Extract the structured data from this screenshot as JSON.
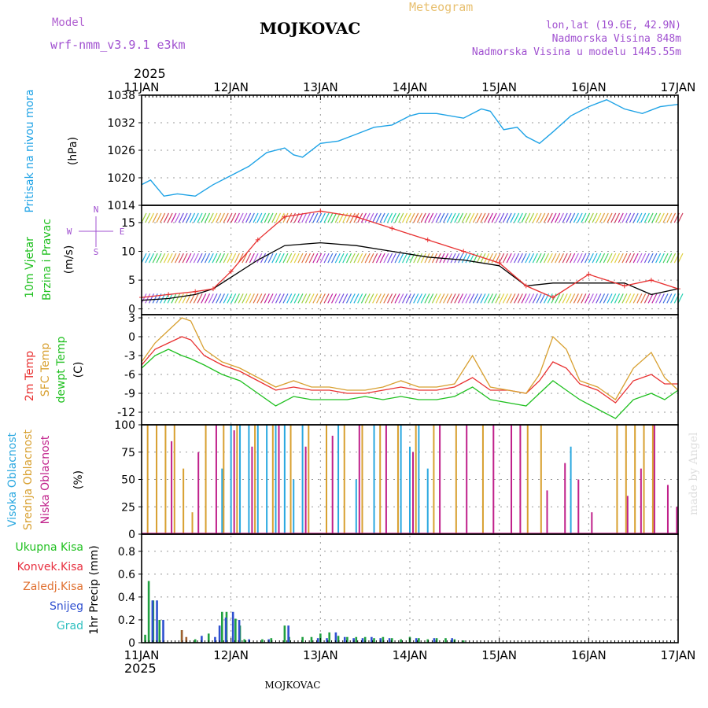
{
  "header": {
    "model_label": "Model",
    "model_name": "wrf-nmm_v3.9.1 e3km",
    "title": "MOJKOVAC",
    "product": "Meteogram",
    "lonlat": "lon,lat (19.6E, 42.9N)",
    "altitude": "Nadmorska Visina 848m",
    "model_altitude": "Nadmorska Visina u modelu 1445.55m",
    "year": "2025",
    "footer_station": "MOJKOVAC",
    "credit": "made by Angel"
  },
  "colors": {
    "pressure": "#1fa3e6",
    "model_purple": "#a050d0",
    "meteogram": "#e8c070",
    "temp2m": "#e83030",
    "sfc": "#d8a030",
    "dewpt": "#20c020",
    "high_cloud": "#2aa8e0",
    "mid_cloud": "#d8a030",
    "low_cloud": "#c0208a",
    "total_precip": "#20a040",
    "snow": "#3050d0",
    "convective": "#e83040",
    "freezing": "#e07030",
    "graupel": "#30c0c0"
  },
  "chart_data": [
    {
      "type": "line",
      "panel": "pressure",
      "ylabel": "Pritisak na nivou mora",
      "unit": "(hPa)",
      "ylim": [
        1014,
        1038
      ],
      "yticks": [
        1014,
        1020,
        1026,
        1032,
        1038
      ],
      "x_days": [
        0,
        0.1,
        0.25,
        0.4,
        0.6,
        0.8,
        1.0,
        1.2,
        1.4,
        1.6,
        1.7,
        1.8,
        2.0,
        2.2,
        2.4,
        2.6,
        2.8,
        3.0,
        3.1,
        3.3,
        3.6,
        3.8,
        3.9,
        4.05,
        4.2,
        4.3,
        4.45,
        4.6,
        4.8,
        5.0,
        5.2,
        5.4,
        5.6,
        5.8,
        6.0
      ],
      "values": [
        1018.5,
        1019.5,
        1016,
        1016.5,
        1016,
        1018.5,
        1020.5,
        1022.5,
        1025.5,
        1026.5,
        1025,
        1024.5,
        1027.5,
        1028,
        1029.5,
        1031,
        1031.5,
        1033.5,
        1034,
        1034,
        1033,
        1035,
        1034.5,
        1030.5,
        1031,
        1029,
        1027.5,
        1030,
        1033.5,
        1035.5,
        1037,
        1035,
        1034,
        1035.5,
        1036
      ]
    },
    {
      "type": "line",
      "panel": "wind",
      "ylabel": "10m Vjetar Brzina i Pravac",
      "unit": "(m/s)",
      "ylim": [
        -1,
        18
      ],
      "yticks": [
        0,
        5,
        10,
        15
      ],
      "compass_labels": [
        "N",
        "S",
        "W",
        "E"
      ],
      "barb_rows": [
        1,
        8,
        15
      ],
      "series": [
        {
          "name": "speed",
          "color": "#000000",
          "x_days": [
            0,
            0.3,
            0.6,
            0.8,
            1.0,
            1.3,
            1.6,
            2.0,
            2.4,
            2.8,
            3.2,
            3.6,
            4.0,
            4.3,
            4.6,
            5.0,
            5.4,
            5.7,
            6.0
          ],
          "values": [
            1.5,
            1.8,
            2.5,
            3.5,
            5.5,
            8.5,
            11,
            11.5,
            11,
            10,
            9,
            8.5,
            7.5,
            4,
            4.5,
            4.5,
            4.5,
            2.5,
            3.5
          ]
        },
        {
          "name": "gust",
          "color": "#e83030",
          "x_days": [
            0,
            0.3,
            0.6,
            0.8,
            1.0,
            1.3,
            1.6,
            2.0,
            2.4,
            2.8,
            3.2,
            3.6,
            4.0,
            4.3,
            4.6,
            5.0,
            5.4,
            5.7,
            6.0
          ],
          "values": [
            2,
            2.5,
            3,
            3.5,
            6.5,
            12,
            16,
            17,
            16,
            14,
            12,
            10,
            8,
            4,
            2,
            6,
            4,
            5,
            3.5
          ]
        }
      ]
    },
    {
      "type": "line",
      "panel": "temperature",
      "ylabel": "2m Temp / SFC Temp / dewpt Temp",
      "unit": "(C)",
      "ylim": [
        -14,
        3.5
      ],
      "yticks": [
        -12,
        -9,
        -6,
        -3,
        0,
        3
      ],
      "x_days": [
        0,
        0.15,
        0.3,
        0.45,
        0.55,
        0.7,
        0.9,
        1.1,
        1.3,
        1.5,
        1.7,
        1.9,
        2.1,
        2.3,
        2.5,
        2.7,
        2.9,
        3.1,
        3.3,
        3.5,
        3.7,
        3.9,
        4.1,
        4.3,
        4.45,
        4.6,
        4.75,
        4.9,
        5.1,
        5.3,
        5.5,
        5.7,
        5.85,
        6.0
      ],
      "series": [
        {
          "name": "2m Temp",
          "values": [
            -4.5,
            -2,
            -1,
            0,
            -0.5,
            -3,
            -4.5,
            -5.5,
            -7,
            -8.5,
            -8,
            -8.5,
            -8.5,
            -9,
            -9,
            -8.5,
            -8,
            -8.5,
            -8.5,
            -8,
            -6.5,
            -8.5,
            -8.5,
            -9,
            -7,
            -4,
            -5,
            -7.5,
            -8.5,
            -10.5,
            -7,
            -6,
            -7.5,
            -7.5
          ]
        },
        {
          "name": "SFC Temp",
          "values": [
            -4,
            -1,
            1,
            3,
            2.5,
            -2,
            -4,
            -5,
            -6.5,
            -8,
            -7,
            -8,
            -8,
            -8.5,
            -8.5,
            -8,
            -7,
            -8,
            -8,
            -7.5,
            -3,
            -8,
            -8.5,
            -9,
            -6,
            0,
            -2,
            -7,
            -8,
            -10,
            -5,
            -2.5,
            -6.5,
            -8.5
          ]
        },
        {
          "name": "dewpt Temp",
          "values": [
            -5,
            -3,
            -2,
            -3,
            -3.5,
            -4.5,
            -6,
            -7,
            -9,
            -11,
            -9.5,
            -10,
            -10,
            -10,
            -9.5,
            -10,
            -9.5,
            -10,
            -10,
            -9.5,
            -8,
            -10,
            -10.5,
            -11,
            -9,
            -7,
            -8.5,
            -10,
            -11.5,
            -13,
            -10,
            -9,
            -10,
            -8.5
          ]
        }
      ]
    },
    {
      "type": "bar",
      "panel": "cloud_cover",
      "ylabel": "Visoka Oblacnost / Srednja Oblacnost / Niska Oblacnost",
      "unit": "(%)",
      "ylim": [
        0,
        100
      ],
      "yticks": [
        0,
        25,
        50,
        75,
        100
      ],
      "series": [
        {
          "name": "Visoka Oblacnost",
          "x_days": [
            0.9,
            1.0,
            1.1,
            1.2,
            1.3,
            1.4,
            1.5,
            1.6,
            1.7,
            1.8,
            2.2,
            2.4,
            2.6,
            2.9,
            3.0,
            3.1,
            3.2,
            4.4,
            4.6,
            4.8,
            5.0
          ],
          "values": [
            60,
            100,
            100,
            100,
            100,
            100,
            100,
            100,
            50,
            100,
            100,
            50,
            100,
            100,
            80,
            100,
            60,
            0,
            0,
            80,
            0
          ]
        },
        {
          "name": "Srednja Oblacnost",
          "x_days": [
            0.05,
            0.15,
            0.25,
            0.35,
            0.45,
            0.55,
            0.7,
            0.9,
            1.05,
            1.25,
            1.45,
            1.65,
            1.85,
            2.05,
            2.25,
            2.45,
            2.65,
            2.85,
            3.05,
            3.25,
            3.5,
            3.8,
            4.3,
            4.45,
            5.3,
            5.4,
            5.5,
            5.6,
            5.7
          ],
          "values": [
            100,
            100,
            100,
            100,
            60,
            20,
            100,
            100,
            100,
            100,
            100,
            100,
            100,
            100,
            100,
            100,
            100,
            100,
            100,
            100,
            100,
            100,
            100,
            100,
            100,
            100,
            100,
            100,
            100
          ]
        },
        {
          "name": "Niska Oblacnost",
          "x_days": [
            0.3,
            0.6,
            0.8,
            1.0,
            1.2,
            1.5,
            1.8,
            2.1,
            2.4,
            2.7,
            3.0,
            3.3,
            3.6,
            3.9,
            4.1,
            4.2,
            4.5,
            4.7,
            4.85,
            5.0,
            5.4,
            5.55,
            5.7,
            5.85,
            5.95
          ],
          "values": [
            85,
            75,
            100,
            95,
            80,
            100,
            80,
            90,
            100,
            100,
            75,
            100,
            100,
            100,
            100,
            100,
            40,
            65,
            50,
            20,
            35,
            60,
            100,
            45,
            25
          ]
        }
      ]
    },
    {
      "type": "bar",
      "panel": "precipitation",
      "ylabel": "1hr Precip (mm)",
      "ylim": [
        0,
        0.95
      ],
      "yticks": [
        0,
        0.2,
        0.4,
        0.6,
        0.8
      ],
      "legend": [
        "Ukupna Kisa",
        "Konvek.Kisa",
        "Zaledj.Kisa",
        "Snijeg",
        "Grad"
      ],
      "series": [
        {
          "name": "Ukupna Kisa",
          "x_days": [
            0.04,
            0.08,
            0.13,
            0.2,
            0.45,
            0.6,
            0.75,
            0.9,
            0.95,
            1.05,
            1.1,
            1.15,
            1.35,
            1.45,
            1.6,
            1.65,
            1.8,
            1.9,
            2.0,
            2.1,
            2.2,
            2.3,
            2.4,
            2.5,
            2.6,
            2.7,
            2.8,
            2.9,
            3.0,
            3.1,
            3.2,
            3.3,
            3.4,
            3.5,
            3.6
          ],
          "values": [
            0.07,
            0.54,
            0.37,
            0.2,
            0.11,
            0.03,
            0.08,
            0.27,
            0.27,
            0.21,
            0.15,
            0.03,
            0.03,
            0.04,
            0.15,
            0.05,
            0.05,
            0.05,
            0.08,
            0.09,
            0.06,
            0.05,
            0.05,
            0.05,
            0.04,
            0.05,
            0.04,
            0.03,
            0.05,
            0.04,
            0.03,
            0.04,
            0.04,
            0.03,
            0.02
          ]
        },
        {
          "name": "Snijeg",
          "x_days": [
            0.1,
            0.15,
            0.22,
            0.65,
            0.8,
            0.85,
            0.92,
            1.0,
            1.07,
            1.18,
            1.4,
            1.62,
            1.95,
            2.05,
            2.15,
            2.25,
            2.35,
            2.45,
            2.55,
            2.65,
            2.75,
            3.05,
            3.25,
            3.45
          ],
          "values": [
            0.37,
            0.37,
            0.2,
            0.06,
            0.05,
            0.15,
            0.22,
            0.27,
            0.2,
            0.03,
            0.03,
            0.15,
            0.04,
            0.04,
            0.09,
            0.05,
            0.04,
            0.04,
            0.05,
            0.04,
            0.04,
            0.04,
            0.04,
            0.04
          ]
        },
        {
          "name": "Konvek.Kisa",
          "x_days": [
            0.45,
            0.5
          ],
          "values": [
            0.11,
            0.05
          ]
        }
      ]
    }
  ],
  "x_axis": {
    "labels": [
      "11JAN",
      "12JAN",
      "13JAN",
      "14JAN",
      "15JAN",
      "16JAN",
      "17JAN"
    ]
  }
}
